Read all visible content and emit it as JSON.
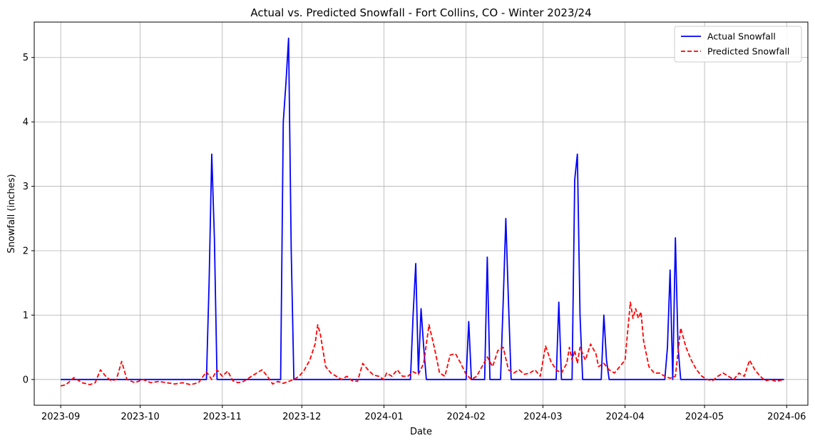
{
  "chart_data": {
    "type": "line",
    "title": "Actual vs. Predicted Snowfall - Fort Collins, CO - Winter 2023/24",
    "xlabel": "Date",
    "ylabel": "Snowfall (inches)",
    "xlim": [
      "2023-08-22",
      "2024-06-09"
    ],
    "ylim": [
      -0.4,
      5.55
    ],
    "grid": true,
    "legend_position": "top-right",
    "x_ticks": [
      {
        "date": "2023-09-01",
        "label": "2023-09"
      },
      {
        "date": "2023-10-01",
        "label": "2023-10"
      },
      {
        "date": "2023-11-01",
        "label": "2023-11"
      },
      {
        "date": "2023-12-01",
        "label": "2023-12"
      },
      {
        "date": "2024-01-01",
        "label": "2024-01"
      },
      {
        "date": "2024-02-01",
        "label": "2024-02"
      },
      {
        "date": "2024-03-01",
        "label": "2024-03"
      },
      {
        "date": "2024-04-01",
        "label": "2024-04"
      },
      {
        "date": "2024-05-01",
        "label": "2024-05"
      },
      {
        "date": "2024-06-01",
        "label": "2024-06"
      }
    ],
    "y_ticks": [
      0,
      1,
      2,
      3,
      4,
      5
    ],
    "series": [
      {
        "name": "Actual Snowfall",
        "color": "#0000ff",
        "style": "solid",
        "points": [
          [
            "2023-09-01",
            0
          ],
          [
            "2023-10-26",
            0
          ],
          [
            "2023-10-27",
            1.5
          ],
          [
            "2023-10-28",
            3.5
          ],
          [
            "2023-10-29",
            2.2
          ],
          [
            "2023-10-30",
            0
          ],
          [
            "2023-11-23",
            0
          ],
          [
            "2023-11-24",
            4.0
          ],
          [
            "2023-11-25",
            4.6
          ],
          [
            "2023-11-26",
            5.3
          ],
          [
            "2023-11-27",
            2.0
          ],
          [
            "2023-11-28",
            0
          ],
          [
            "2024-01-11",
            0
          ],
          [
            "2024-01-12",
            1.0
          ],
          [
            "2024-01-13",
            1.8
          ],
          [
            "2024-01-14",
            0.1
          ],
          [
            "2024-01-15",
            1.1
          ],
          [
            "2024-01-16",
            0.5
          ],
          [
            "2024-01-17",
            0
          ],
          [
            "2024-02-01",
            0
          ],
          [
            "2024-02-02",
            0.9
          ],
          [
            "2024-02-03",
            0
          ],
          [
            "2024-02-08",
            0
          ],
          [
            "2024-02-09",
            1.9
          ],
          [
            "2024-02-10",
            0
          ],
          [
            "2024-02-14",
            0
          ],
          [
            "2024-02-15",
            1.2
          ],
          [
            "2024-02-16",
            2.5
          ],
          [
            "2024-02-17",
            1.2
          ],
          [
            "2024-02-18",
            0
          ],
          [
            "2024-03-06",
            0
          ],
          [
            "2024-03-07",
            1.2
          ],
          [
            "2024-03-08",
            0
          ],
          [
            "2024-03-12",
            0
          ],
          [
            "2024-03-13",
            3.1
          ],
          [
            "2024-03-14",
            3.5
          ],
          [
            "2024-03-15",
            1.0
          ],
          [
            "2024-03-16",
            0
          ],
          [
            "2024-03-23",
            0
          ],
          [
            "2024-03-24",
            1.0
          ],
          [
            "2024-03-25",
            0.3
          ],
          [
            "2024-03-26",
            0
          ],
          [
            "2024-04-16",
            0
          ],
          [
            "2024-04-17",
            0.5
          ],
          [
            "2024-04-18",
            1.7
          ],
          [
            "2024-04-19",
            0
          ],
          [
            "2024-04-20",
            2.2
          ],
          [
            "2024-04-21",
            0.5
          ],
          [
            "2024-04-22",
            0
          ],
          [
            "2024-05-31",
            0
          ]
        ]
      },
      {
        "name": "Predicted Snowfall",
        "color": "#ff0000",
        "style": "dashed",
        "points": [
          [
            "2023-09-01",
            -0.1
          ],
          [
            "2023-09-03",
            -0.08
          ],
          [
            "2023-09-06",
            0.03
          ],
          [
            "2023-09-09",
            -0.05
          ],
          [
            "2023-09-12",
            -0.08
          ],
          [
            "2023-09-14",
            -0.05
          ],
          [
            "2023-09-16",
            0.15
          ],
          [
            "2023-09-18",
            0.05
          ],
          [
            "2023-09-20",
            -0.02
          ],
          [
            "2023-09-22",
            0.0
          ],
          [
            "2023-09-24",
            0.28
          ],
          [
            "2023-09-26",
            0.0
          ],
          [
            "2023-09-29",
            -0.05
          ],
          [
            "2023-10-02",
            0.0
          ],
          [
            "2023-10-05",
            -0.05
          ],
          [
            "2023-10-08",
            -0.03
          ],
          [
            "2023-10-11",
            -0.05
          ],
          [
            "2023-10-14",
            -0.07
          ],
          [
            "2023-10-17",
            -0.05
          ],
          [
            "2023-10-20",
            -0.08
          ],
          [
            "2023-10-23",
            -0.05
          ],
          [
            "2023-10-26",
            0.12
          ],
          [
            "2023-10-28",
            0.0
          ],
          [
            "2023-10-30",
            0.15
          ],
          [
            "2023-11-01",
            0.05
          ],
          [
            "2023-11-03",
            0.13
          ],
          [
            "2023-11-05",
            -0.02
          ],
          [
            "2023-11-07",
            -0.05
          ],
          [
            "2023-11-09",
            -0.03
          ],
          [
            "2023-11-12",
            0.05
          ],
          [
            "2023-11-14",
            0.1
          ],
          [
            "2023-11-16",
            0.15
          ],
          [
            "2023-11-18",
            0.05
          ],
          [
            "2023-11-20",
            -0.07
          ],
          [
            "2023-11-22",
            -0.03
          ],
          [
            "2023-11-24",
            -0.06
          ],
          [
            "2023-11-26",
            -0.03
          ],
          [
            "2023-11-28",
            0.0
          ],
          [
            "2023-11-30",
            0.05
          ],
          [
            "2023-12-02",
            0.15
          ],
          [
            "2023-12-04",
            0.3
          ],
          [
            "2023-12-06",
            0.55
          ],
          [
            "2023-12-07",
            0.85
          ],
          [
            "2023-12-08",
            0.7
          ],
          [
            "2023-12-10",
            0.2
          ],
          [
            "2023-12-12",
            0.1
          ],
          [
            "2023-12-14",
            0.05
          ],
          [
            "2023-12-16",
            0.0
          ],
          [
            "2023-12-18",
            0.05
          ],
          [
            "2023-12-20",
            -0.02
          ],
          [
            "2023-12-22",
            -0.03
          ],
          [
            "2023-12-24",
            0.25
          ],
          [
            "2023-12-26",
            0.15
          ],
          [
            "2023-12-28",
            0.07
          ],
          [
            "2023-12-30",
            0.05
          ],
          [
            "2024-01-01",
            0.0
          ],
          [
            "2024-01-02",
            0.1
          ],
          [
            "2024-01-04",
            0.05
          ],
          [
            "2024-01-06",
            0.15
          ],
          [
            "2024-01-08",
            0.05
          ],
          [
            "2024-01-10",
            0.05
          ],
          [
            "2024-01-12",
            0.12
          ],
          [
            "2024-01-14",
            0.08
          ],
          [
            "2024-01-16",
            0.25
          ],
          [
            "2024-01-18",
            0.85
          ],
          [
            "2024-01-20",
            0.5
          ],
          [
            "2024-01-22",
            0.1
          ],
          [
            "2024-01-24",
            0.05
          ],
          [
            "2024-01-26",
            0.38
          ],
          [
            "2024-01-28",
            0.4
          ],
          [
            "2024-01-30",
            0.25
          ],
          [
            "2024-02-01",
            0.08
          ],
          [
            "2024-02-03",
            0.0
          ],
          [
            "2024-02-05",
            0.05
          ],
          [
            "2024-02-07",
            0.2
          ],
          [
            "2024-02-09",
            0.35
          ],
          [
            "2024-02-11",
            0.2
          ],
          [
            "2024-02-13",
            0.45
          ],
          [
            "2024-02-15",
            0.5
          ],
          [
            "2024-02-17",
            0.15
          ],
          [
            "2024-02-19",
            0.1
          ],
          [
            "2024-02-21",
            0.15
          ],
          [
            "2024-02-23",
            0.08
          ],
          [
            "2024-02-25",
            0.1
          ],
          [
            "2024-02-27",
            0.15
          ],
          [
            "2024-02-29",
            0.05
          ],
          [
            "2024-03-02",
            0.52
          ],
          [
            "2024-03-04",
            0.28
          ],
          [
            "2024-03-06",
            0.15
          ],
          [
            "2024-03-08",
            0.1
          ],
          [
            "2024-03-10",
            0.25
          ],
          [
            "2024-03-11",
            0.5
          ],
          [
            "2024-03-12",
            0.3
          ],
          [
            "2024-03-13",
            0.45
          ],
          [
            "2024-03-14",
            0.25
          ],
          [
            "2024-03-15",
            0.5
          ],
          [
            "2024-03-17",
            0.3
          ],
          [
            "2024-03-19",
            0.55
          ],
          [
            "2024-03-21",
            0.4
          ],
          [
            "2024-03-22",
            0.2
          ],
          [
            "2024-03-24",
            0.25
          ],
          [
            "2024-03-26",
            0.15
          ],
          [
            "2024-03-28",
            0.1
          ],
          [
            "2024-03-30",
            0.2
          ],
          [
            "2024-04-01",
            0.3
          ],
          [
            "2024-04-03",
            1.2
          ],
          [
            "2024-04-04",
            0.95
          ],
          [
            "2024-04-05",
            1.1
          ],
          [
            "2024-04-06",
            0.95
          ],
          [
            "2024-04-07",
            1.05
          ],
          [
            "2024-04-08",
            0.6
          ],
          [
            "2024-04-10",
            0.2
          ],
          [
            "2024-04-12",
            0.1
          ],
          [
            "2024-04-14",
            0.1
          ],
          [
            "2024-04-16",
            0.05
          ],
          [
            "2024-04-18",
            0.02
          ],
          [
            "2024-04-20",
            0.05
          ],
          [
            "2024-04-22",
            0.8
          ],
          [
            "2024-04-24",
            0.5
          ],
          [
            "2024-04-26",
            0.3
          ],
          [
            "2024-04-28",
            0.15
          ],
          [
            "2024-04-30",
            0.05
          ],
          [
            "2024-05-02",
            0.0
          ],
          [
            "2024-05-04",
            -0.02
          ],
          [
            "2024-05-06",
            0.05
          ],
          [
            "2024-05-08",
            0.1
          ],
          [
            "2024-05-10",
            0.05
          ],
          [
            "2024-05-12",
            0.0
          ],
          [
            "2024-05-14",
            0.1
          ],
          [
            "2024-05-16",
            0.05
          ],
          [
            "2024-05-18",
            0.3
          ],
          [
            "2024-05-20",
            0.15
          ],
          [
            "2024-05-22",
            0.05
          ],
          [
            "2024-05-24",
            -0.02
          ],
          [
            "2024-05-26",
            0.0
          ],
          [
            "2024-05-28",
            -0.03
          ],
          [
            "2024-05-31",
            0.0
          ]
        ]
      }
    ]
  }
}
